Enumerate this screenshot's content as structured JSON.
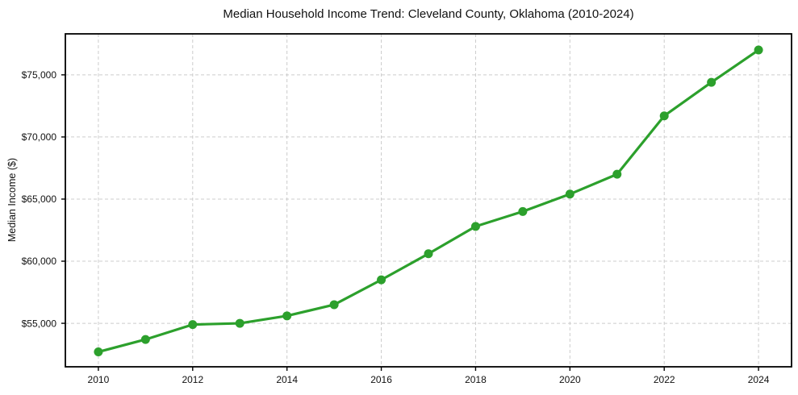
{
  "chart_data": {
    "type": "line",
    "title": "Median Household Income Trend: Cleveland County, Oklahoma (2010-2024)",
    "xlabel": "",
    "ylabel": "Median Income ($)",
    "x": [
      2010,
      2011,
      2012,
      2013,
      2014,
      2015,
      2016,
      2017,
      2018,
      2019,
      2020,
      2021,
      2022,
      2023,
      2024
    ],
    "values": [
      52700,
      53700,
      54900,
      55000,
      55600,
      56500,
      58500,
      60600,
      62800,
      64000,
      65400,
      67000,
      71700,
      74400,
      77000
    ],
    "xticks": [
      2010,
      2012,
      2014,
      2016,
      2018,
      2020,
      2022,
      2024
    ],
    "xtick_labels": [
      "2010",
      "2012",
      "2014",
      "2016",
      "2018",
      "2020",
      "2022",
      "2024"
    ],
    "yticks": [
      55000,
      60000,
      65000,
      70000,
      75000
    ],
    "ytick_labels": [
      "$55,000",
      "$60,000",
      "$65,000",
      "$70,000",
      "$75,000"
    ],
    "xlim": [
      2009.3,
      2024.7
    ],
    "ylim": [
      51500,
      78300
    ],
    "grid": true,
    "grid_style": "dashed",
    "grid_color": "#cccccc",
    "line_color": "#2ca02c",
    "marker": "circle",
    "marker_color": "#2ca02c",
    "frame_color": "#000000",
    "legend": "none"
  }
}
